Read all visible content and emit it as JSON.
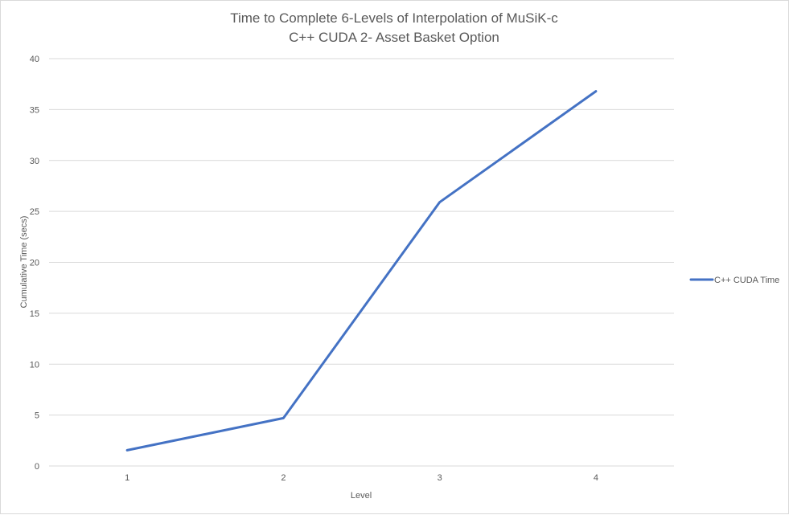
{
  "chart_data": {
    "type": "line",
    "title": [
      "Time to Complete 6-Levels of Interpolation of MuSiK-c",
      "C++ CUDA 2- Asset Basket Option"
    ],
    "xlabel": "Level",
    "ylabel": "Cumulative Time (secs)",
    "categories": [
      "1",
      "2",
      "3",
      "4"
    ],
    "ylim": [
      0,
      40
    ],
    "yticks": [
      0,
      5,
      10,
      15,
      20,
      25,
      30,
      35,
      40
    ],
    "grid": true,
    "legend_position": "right",
    "series": [
      {
        "name": "C++ CUDA Time",
        "color": "#4472c4",
        "values": [
          1.55,
          4.7,
          25.9,
          36.8
        ]
      }
    ]
  }
}
